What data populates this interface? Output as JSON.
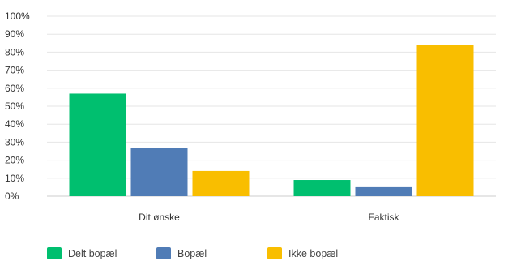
{
  "chart_data": {
    "type": "bar",
    "title": "",
    "xlabel": "",
    "ylabel": "",
    "categories": [
      "Dit ønske",
      "Faktisk"
    ],
    "series": [
      {
        "name": "Delt bopæl",
        "values": [
          57,
          9
        ],
        "color": "#00BF6F"
      },
      {
        "name": "Bopæl",
        "values": [
          27,
          5
        ],
        "color": "#507CB6"
      },
      {
        "name": "Ikke bopæl",
        "values": [
          14,
          84
        ],
        "color": "#F9BE00"
      }
    ],
    "ylim": [
      0,
      100
    ],
    "yticks": [
      0,
      10,
      20,
      30,
      40,
      50,
      60,
      70,
      80,
      90,
      100
    ],
    "ytick_labels": [
      "0%",
      "10%",
      "20%",
      "30%",
      "40%",
      "50%",
      "60%",
      "70%",
      "80%",
      "90%",
      "100%"
    ],
    "grid": true,
    "legend_position": "bottom-left",
    "gridline_color": "#E6E6E6",
    "axis_color": "#CCCCCC"
  }
}
